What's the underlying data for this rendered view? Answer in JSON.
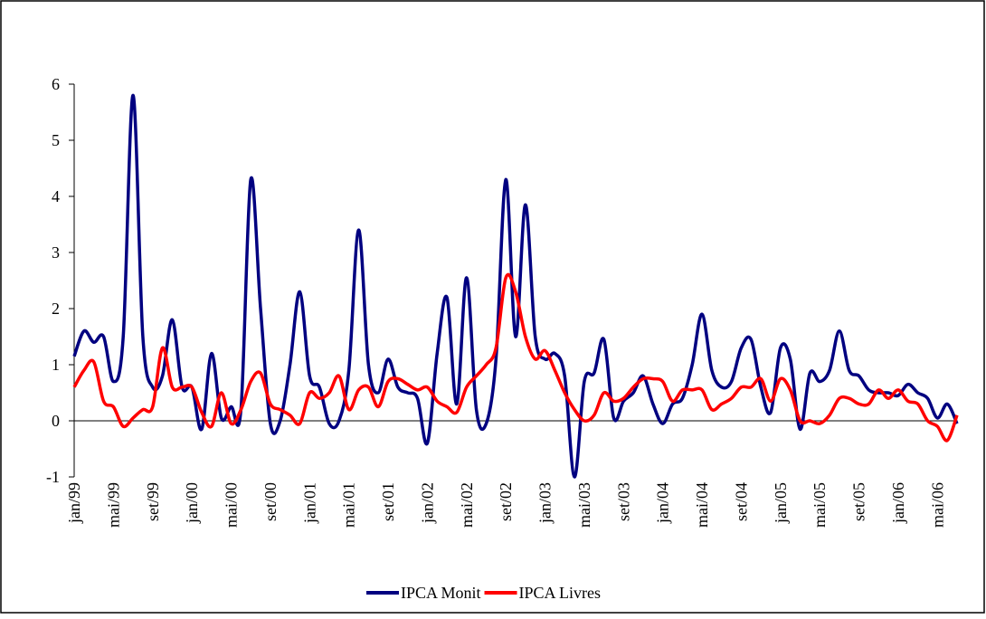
{
  "chart_data": {
    "type": "line",
    "categories": [
      "jan/99",
      null,
      null,
      null,
      "mai/99",
      null,
      null,
      null,
      "set/99",
      null,
      null,
      null,
      "jan/00",
      null,
      null,
      null,
      "mai/00",
      null,
      null,
      null,
      "set/00",
      null,
      null,
      null,
      "jan/01",
      null,
      null,
      null,
      "mai/01",
      null,
      null,
      null,
      "set/01",
      null,
      null,
      null,
      "jan/02",
      null,
      null,
      null,
      "mai/02",
      null,
      null,
      null,
      "set/02",
      null,
      null,
      null,
      "jan/03",
      null,
      null,
      null,
      "mai/03",
      null,
      null,
      null,
      "set/03",
      null,
      null,
      null,
      "jan/04",
      null,
      null,
      null,
      "mai/04",
      null,
      null,
      null,
      "set/04",
      null,
      null,
      null,
      "jan/05",
      null,
      null,
      null,
      "mai/05",
      null,
      null,
      null,
      "set/05",
      null,
      null,
      null,
      "jan/06",
      null,
      null,
      null,
      "mai/06",
      null,
      null
    ],
    "series": [
      {
        "name": "IPCA Monit",
        "color": "#000080",
        "values": [
          1.15,
          1.6,
          1.4,
          1.5,
          0.7,
          1.5,
          5.8,
          1.5,
          0.6,
          0.8,
          1.8,
          0.6,
          0.6,
          -0.15,
          1.2,
          0.05,
          0.25,
          0.2,
          4.3,
          2.0,
          -0.05,
          0.0,
          1.0,
          2.3,
          0.8,
          0.6,
          -0.05,
          0.0,
          0.9,
          3.4,
          1.0,
          0.5,
          1.1,
          0.6,
          0.5,
          0.4,
          -0.4,
          1.2,
          2.2,
          0.3,
          2.55,
          0.2,
          -0.05,
          1.1,
          4.3,
          1.5,
          3.85,
          1.5,
          1.1,
          1.2,
          0.8,
          -1.0,
          0.7,
          0.85,
          1.45,
          0.05,
          0.35,
          0.5,
          0.8,
          0.3,
          -0.05,
          0.3,
          0.4,
          1.0,
          1.9,
          0.9,
          0.6,
          0.7,
          1.3,
          1.45,
          0.6,
          0.15,
          1.3,
          1.1,
          -0.15,
          0.85,
          0.7,
          0.9,
          1.6,
          0.9,
          0.8,
          0.55,
          0.5,
          0.5,
          0.45,
          0.65,
          0.5,
          0.4,
          0.05,
          0.3,
          -0.05
        ]
      },
      {
        "name": "IPCA Livres",
        "color": "#ff0000",
        "values": [
          0.6,
          0.9,
          1.05,
          0.35,
          0.25,
          -0.1,
          0.05,
          0.2,
          0.25,
          1.3,
          0.6,
          0.6,
          0.6,
          0.15,
          -0.1,
          0.5,
          -0.05,
          0.2,
          0.7,
          0.85,
          0.3,
          0.2,
          0.1,
          -0.05,
          0.5,
          0.4,
          0.5,
          0.8,
          0.2,
          0.55,
          0.6,
          0.25,
          0.7,
          0.75,
          0.65,
          0.55,
          0.6,
          0.35,
          0.25,
          0.15,
          0.6,
          0.8,
          1.0,
          1.3,
          2.55,
          2.3,
          1.5,
          1.1,
          1.25,
          0.9,
          0.5,
          0.2,
          0.0,
          0.1,
          0.5,
          0.35,
          0.4,
          0.6,
          0.75,
          0.75,
          0.7,
          0.35,
          0.55,
          0.55,
          0.55,
          0.2,
          0.3,
          0.4,
          0.6,
          0.6,
          0.75,
          0.35,
          0.75,
          0.55,
          0.0,
          0.0,
          -0.05,
          0.1,
          0.4,
          0.4,
          0.3,
          0.3,
          0.55,
          0.4,
          0.55,
          0.35,
          0.3,
          0.0,
          -0.1,
          -0.35,
          0.1
        ]
      }
    ],
    "ylim": [
      -1,
      6
    ],
    "yticks": [
      -1,
      0,
      1,
      2,
      3,
      4,
      5,
      6
    ],
    "legend": "bottom"
  }
}
